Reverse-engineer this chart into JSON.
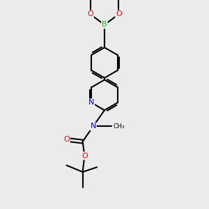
{
  "background_color": "#ebebeb",
  "bond_color": "#000000",
  "bond_width": 1.5,
  "atom_colors": {
    "B": "#00cc00",
    "O": "#ff0000",
    "N": "#0000ee",
    "C": "#000000"
  },
  "figsize": [
    3.0,
    3.0
  ],
  "dpi": 100,
  "xlim": [
    -3.5,
    3.5
  ],
  "ylim": [
    -5.5,
    5.5
  ]
}
